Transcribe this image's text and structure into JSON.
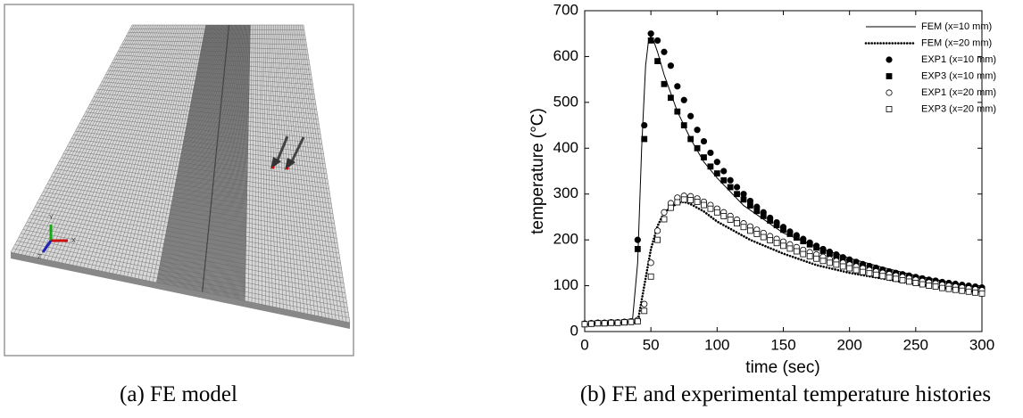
{
  "captions": [
    "(a)  FE  model",
    "(b)  FE and experimental temperature  histories"
  ],
  "model": {
    "axis_labels": [
      "Y",
      "X",
      "Z"
    ]
  },
  "chart_data": {
    "type": "line",
    "xlabel": "time (sec)",
    "ylabel": "temperature (°C)",
    "xlim": [
      0,
      300
    ],
    "xticks": [
      0,
      50,
      100,
      150,
      200,
      250,
      300
    ],
    "ylim": [
      0,
      700
    ],
    "yticks": [
      0,
      100,
      200,
      300,
      400,
      500,
      600,
      700
    ],
    "grid": false,
    "legend": "upper right",
    "x": [
      0,
      5,
      10,
      15,
      20,
      25,
      30,
      35,
      40,
      45,
      50,
      55,
      60,
      65,
      70,
      75,
      80,
      85,
      90,
      95,
      100,
      105,
      110,
      115,
      120,
      125,
      130,
      135,
      140,
      145,
      150,
      155,
      160,
      165,
      170,
      175,
      180,
      185,
      190,
      195,
      200,
      205,
      210,
      215,
      220,
      225,
      230,
      235,
      240,
      245,
      250,
      255,
      260,
      265,
      270,
      275,
      280,
      285,
      290,
      295,
      300
    ],
    "series": [
      {
        "name": "FEM (x=10 mm)",
        "color": "#000000",
        "style": "solid",
        "x": [
          0,
          10,
          20,
          30,
          36,
          40,
          43,
          46,
          48,
          50,
          52,
          55,
          60,
          70,
          80,
          90,
          100,
          120,
          150,
          175,
          200,
          225,
          250,
          275,
          300
        ],
        "values": [
          15,
          18,
          19,
          20,
          22,
          150,
          400,
          580,
          630,
          645,
          635,
          610,
          560,
          480,
          420,
          370,
          335,
          275,
          215,
          185,
          160,
          140,
          122,
          108,
          95
        ]
      },
      {
        "name": "FEM (x=20 mm)",
        "color": "#000000",
        "style": "dotted",
        "x": [
          0,
          10,
          20,
          30,
          40,
          45,
          50,
          55,
          60,
          70,
          75,
          80,
          90,
          100,
          125,
          150,
          175,
          200,
          250,
          300
        ],
        "values": [
          15,
          16,
          17,
          18,
          20,
          100,
          180,
          230,
          260,
          280,
          283,
          278,
          262,
          240,
          200,
          170,
          145,
          128,
          103,
          85
        ]
      },
      {
        "name": "EXP1 (x=10 mm)",
        "color": "#000000",
        "marker": "circle",
        "fill": "filled",
        "values": [
          17,
          18,
          19,
          19,
          20,
          20,
          21,
          22,
          200,
          450,
          650,
          635,
          610,
          580,
          535,
          505,
          470,
          440,
          415,
          390,
          370,
          350,
          330,
          315,
          300,
          285,
          272,
          260,
          248,
          238,
          228,
          218,
          210,
          202,
          194,
          187,
          180,
          174,
          168,
          162,
          157,
          152,
          147,
          143,
          139,
          135,
          131,
          128,
          125,
          122,
          119,
          116,
          113,
          111,
          108,
          106,
          104,
          102,
          100,
          98,
          96
        ]
      },
      {
        "name": "EXP3 (x=10 mm)",
        "color": "#000000",
        "marker": "square",
        "fill": "filled",
        "values": [
          16,
          17,
          18,
          18,
          19,
          19,
          20,
          21,
          180,
          420,
          635,
          590,
          540,
          510,
          480,
          450,
          420,
          400,
          380,
          360,
          345,
          330,
          315,
          300,
          288,
          275,
          263,
          252,
          242,
          232,
          222,
          213,
          205,
          197,
          190,
          183,
          176,
          170,
          164,
          158,
          153,
          148,
          143,
          139,
          135,
          131,
          127,
          124,
          121,
          118,
          115,
          112,
          109,
          107,
          104,
          102,
          100,
          98,
          96,
          94,
          92
        ]
      },
      {
        "name": "EXP1 (x=20 mm)",
        "color": "#000000",
        "marker": "circle",
        "fill": "open",
        "values": [
          17,
          18,
          19,
          19,
          20,
          20,
          21,
          22,
          25,
          60,
          150,
          220,
          260,
          280,
          292,
          296,
          295,
          290,
          283,
          276,
          268,
          260,
          252,
          244,
          236,
          229,
          222,
          215,
          208,
          202,
          196,
          190,
          184,
          178,
          173,
          168,
          163,
          158,
          154,
          150,
          146,
          142,
          138,
          134,
          131,
          128,
          125,
          122,
          119,
          116,
          113,
          110,
          107,
          105,
          102,
          100,
          98,
          96,
          94,
          92,
          90
        ]
      },
      {
        "name": "EXP3 (x=20 mm)",
        "color": "#000000",
        "marker": "square",
        "fill": "open",
        "values": [
          16,
          17,
          18,
          18,
          19,
          19,
          20,
          21,
          22,
          45,
          120,
          200,
          245,
          270,
          282,
          288,
          287,
          283,
          276,
          268,
          260,
          252,
          244,
          236,
          228,
          220,
          213,
          206,
          199,
          193,
          187,
          181,
          175,
          169,
          164,
          159,
          154,
          150,
          146,
          142,
          138,
          134,
          130,
          127,
          124,
          121,
          118,
          115,
          112,
          109,
          106,
          103,
          100,
          98,
          95,
          93,
          91,
          89,
          87,
          85,
          83
        ]
      }
    ]
  }
}
